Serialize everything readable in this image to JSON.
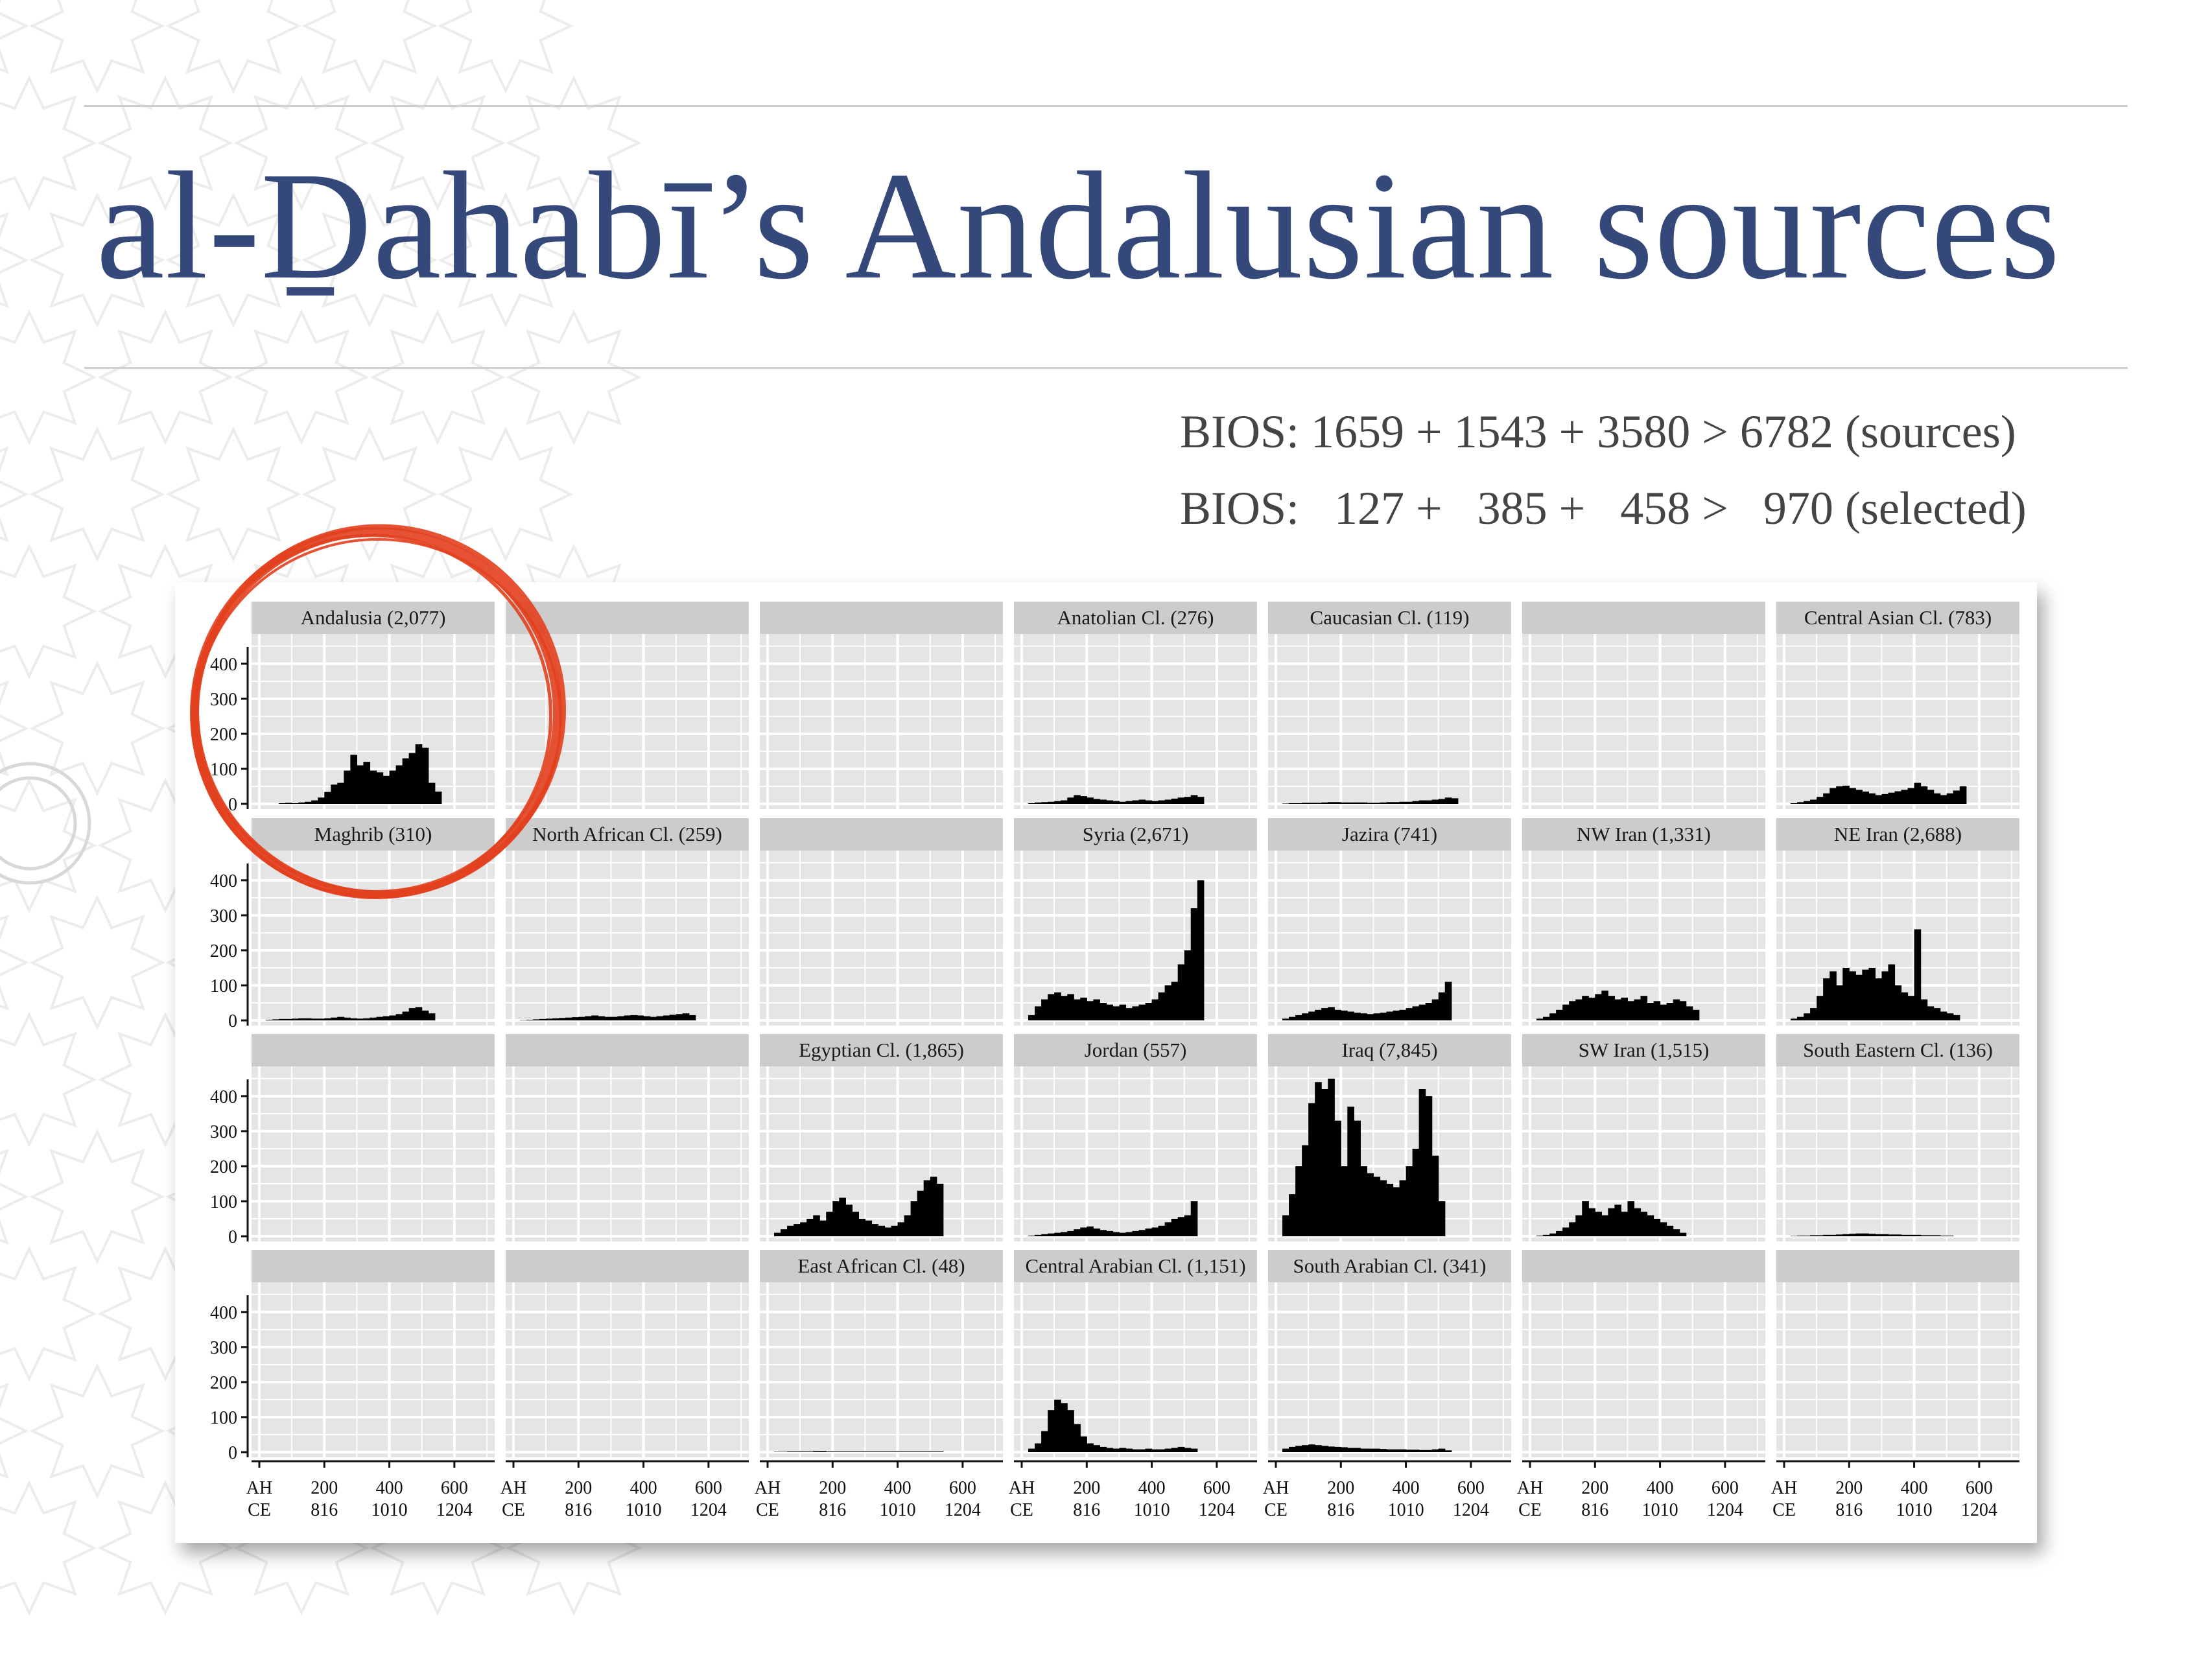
{
  "slide": {
    "title": "al-Ḏahabī’s Andalusian sources",
    "stats": [
      {
        "label": "BIOS:",
        "parts": [
          "1659",
          "1543",
          "3580",
          "6782"
        ],
        "suffix": "(sources)",
        "text": "BIOS: 1659 + 1543 + 3580 > 6782 (sources)"
      },
      {
        "label": "BIOS:",
        "parts": [
          "127",
          "385",
          "458",
          "970"
        ],
        "suffix": "(selected)",
        "text": "BIOS:   127 +   385 +   458 >   970 (selected)"
      }
    ]
  },
  "colors": {
    "title": "#34497a",
    "panel_bg": "#e5e5e5",
    "strip_bg": "#cccccc",
    "bars": "#000000",
    "highlight_circle": "#e2401e"
  },
  "chart_data": {
    "type": "bar",
    "layout": {
      "rows": 4,
      "cols": 7
    },
    "xlim": [
      0,
      700
    ],
    "ylim": [
      0,
      470
    ],
    "x_ticks": [
      {
        "ah": "AH",
        "ce": "CE"
      },
      {
        "ah": "200",
        "ce": "816"
      },
      {
        "ah": "400",
        "ce": "1010"
      },
      {
        "ah": "600",
        "ce": "1204"
      }
    ],
    "y_ticks": [
      "0",
      "100",
      "200",
      "300",
      "400"
    ],
    "bin_width": 20,
    "panels": [
      {
        "row": 0,
        "col": 0,
        "label": "Andalusia (2,077)",
        "values": [
          0,
          0,
          0,
          2,
          3,
          2,
          4,
          6,
          10,
          18,
          34,
          55,
          60,
          95,
          140,
          110,
          120,
          95,
          90,
          80,
          95,
          110,
          130,
          145,
          170,
          160,
          60,
          35,
          0,
          0,
          0,
          0,
          0,
          0,
          0
        ]
      },
      {
        "row": 0,
        "col": 1,
        "label": ""
      },
      {
        "row": 0,
        "col": 2,
        "label": ""
      },
      {
        "row": 0,
        "col": 3,
        "label": "Anatolian Cl. (276)",
        "values": [
          0,
          2,
          4,
          5,
          6,
          8,
          10,
          18,
          25,
          22,
          18,
          14,
          12,
          10,
          8,
          6,
          8,
          10,
          12,
          10,
          8,
          10,
          12,
          15,
          18,
          20,
          25,
          20,
          0,
          0,
          0,
          0,
          0,
          0,
          0
        ]
      },
      {
        "row": 0,
        "col": 4,
        "label": "Caucasian Cl. (119)",
        "values": [
          0,
          1,
          2,
          2,
          3,
          3,
          3,
          4,
          5,
          5,
          4,
          4,
          4,
          4,
          3,
          3,
          4,
          5,
          5,
          6,
          6,
          8,
          10,
          10,
          12,
          14,
          18,
          16,
          0,
          0,
          0,
          0,
          0,
          0,
          0
        ]
      },
      {
        "row": 0,
        "col": 5,
        "label": ""
      },
      {
        "row": 0,
        "col": 6,
        "label": "Central Asian Cl. (783)",
        "values": [
          0,
          2,
          5,
          8,
          12,
          20,
          30,
          45,
          50,
          52,
          45,
          40,
          35,
          30,
          25,
          28,
          32,
          36,
          40,
          45,
          60,
          50,
          40,
          30,
          25,
          30,
          38,
          50,
          0,
          0,
          0,
          0,
          0,
          0,
          0
        ]
      },
      {
        "row": 1,
        "col": 0,
        "label": "Maghrib (310)",
        "values": [
          0,
          2,
          3,
          4,
          4,
          5,
          6,
          6,
          5,
          5,
          6,
          8,
          10,
          8,
          6,
          5,
          6,
          8,
          10,
          12,
          14,
          18,
          25,
          35,
          38,
          28,
          20,
          0,
          0,
          0,
          0,
          0,
          0,
          0,
          0
        ]
      },
      {
        "row": 1,
        "col": 1,
        "label": "North African Cl. (259)",
        "values": [
          0,
          1,
          2,
          3,
          4,
          5,
          6,
          7,
          8,
          9,
          10,
          12,
          14,
          12,
          10,
          10,
          12,
          14,
          15,
          14,
          12,
          10,
          12,
          14,
          16,
          18,
          20,
          15,
          0,
          0,
          0,
          0,
          0,
          0,
          0
        ]
      },
      {
        "row": 1,
        "col": 2,
        "label": ""
      },
      {
        "row": 1,
        "col": 3,
        "label": "Syria (2,671)",
        "values": [
          0,
          15,
          40,
          60,
          75,
          80,
          70,
          75,
          60,
          65,
          55,
          60,
          50,
          45,
          40,
          45,
          35,
          40,
          45,
          50,
          60,
          80,
          100,
          110,
          160,
          200,
          320,
          400,
          0,
          0,
          0,
          0,
          0,
          0,
          0
        ]
      },
      {
        "row": 1,
        "col": 4,
        "label": "Jazira (741)",
        "values": [
          0,
          5,
          10,
          15,
          20,
          25,
          30,
          35,
          38,
          30,
          28,
          25,
          22,
          20,
          18,
          20,
          22,
          25,
          28,
          30,
          35,
          40,
          45,
          50,
          60,
          80,
          110,
          0,
          0,
          0,
          0,
          0,
          0,
          0,
          0
        ]
      },
      {
        "row": 1,
        "col": 5,
        "label": "NW Iran (1,331)",
        "values": [
          0,
          5,
          10,
          20,
          30,
          45,
          55,
          60,
          70,
          65,
          75,
          85,
          70,
          60,
          65,
          55,
          60,
          70,
          50,
          55,
          45,
          50,
          60,
          55,
          40,
          30,
          0,
          0,
          0,
          0,
          0,
          0,
          0,
          0,
          0
        ]
      },
      {
        "row": 1,
        "col": 6,
        "label": "NE Iran (2,688)",
        "values": [
          0,
          5,
          10,
          20,
          35,
          70,
          120,
          140,
          100,
          150,
          140,
          130,
          145,
          150,
          120,
          140,
          160,
          100,
          80,
          70,
          260,
          60,
          40,
          35,
          25,
          20,
          15,
          0,
          0,
          0,
          0,
          0,
          0,
          0,
          0
        ]
      },
      {
        "row": 2,
        "col": 0,
        "label": ""
      },
      {
        "row": 2,
        "col": 1,
        "label": ""
      },
      {
        "row": 2,
        "col": 2,
        "label": "Egyptian Cl. (1,865)",
        "values": [
          0,
          10,
          20,
          30,
          35,
          40,
          50,
          60,
          45,
          70,
          100,
          110,
          90,
          70,
          50,
          45,
          35,
          30,
          25,
          30,
          40,
          60,
          100,
          130,
          160,
          170,
          150,
          0,
          0,
          0,
          0,
          0,
          0,
          0,
          0
        ]
      },
      {
        "row": 2,
        "col": 3,
        "label": "Jordan (557)",
        "values": [
          0,
          2,
          4,
          6,
          8,
          10,
          12,
          15,
          20,
          25,
          28,
          22,
          18,
          15,
          12,
          10,
          12,
          15,
          18,
          22,
          25,
          30,
          40,
          50,
          55,
          60,
          100,
          0,
          0,
          0,
          0,
          0,
          0,
          0,
          0
        ]
      },
      {
        "row": 2,
        "col": 4,
        "label": "Iraq (7,845)",
        "values": [
          0,
          60,
          120,
          200,
          260,
          380,
          440,
          420,
          450,
          330,
          200,
          370,
          330,
          200,
          180,
          170,
          160,
          150,
          140,
          160,
          200,
          250,
          420,
          400,
          230,
          100,
          0,
          0,
          0,
          0,
          0,
          0,
          0,
          0,
          0
        ]
      },
      {
        "row": 2,
        "col": 5,
        "label": "SW Iran (1,515)",
        "values": [
          0,
          2,
          4,
          8,
          15,
          25,
          40,
          60,
          100,
          80,
          70,
          60,
          80,
          90,
          70,
          100,
          80,
          70,
          60,
          50,
          40,
          30,
          20,
          10,
          0,
          0,
          0,
          0,
          0,
          0,
          0,
          0,
          0,
          0,
          0
        ]
      },
      {
        "row": 2,
        "col": 6,
        "label": "South Eastern Cl. (136)",
        "values": [
          0,
          1,
          2,
          2,
          3,
          3,
          4,
          4,
          5,
          6,
          7,
          8,
          8,
          7,
          6,
          6,
          5,
          5,
          4,
          4,
          4,
          3,
          3,
          3,
          2,
          2,
          0,
          0,
          0,
          0,
          0,
          0,
          0,
          0,
          0
        ]
      },
      {
        "row": 3,
        "col": 0,
        "label": ""
      },
      {
        "row": 3,
        "col": 1,
        "label": ""
      },
      {
        "row": 3,
        "col": 2,
        "label": "East African Cl. (48)",
        "values": [
          0,
          1,
          1,
          2,
          2,
          2,
          2,
          3,
          3,
          2,
          2,
          2,
          2,
          2,
          2,
          2,
          2,
          2,
          2,
          2,
          2,
          2,
          2,
          2,
          2,
          2,
          2,
          0,
          0,
          0,
          0,
          0,
          0,
          0,
          0
        ]
      },
      {
        "row": 3,
        "col": 3,
        "label": "Central Arabian Cl. (1,151)",
        "values": [
          0,
          10,
          25,
          60,
          120,
          150,
          140,
          120,
          80,
          45,
          25,
          20,
          15,
          12,
          10,
          12,
          10,
          8,
          8,
          10,
          8,
          8,
          10,
          12,
          15,
          12,
          10,
          0,
          0,
          0,
          0,
          0,
          0,
          0,
          0
        ]
      },
      {
        "row": 3,
        "col": 4,
        "label": "South Arabian Cl. (341)",
        "values": [
          0,
          10,
          15,
          18,
          20,
          22,
          20,
          18,
          16,
          15,
          14,
          12,
          12,
          10,
          10,
          10,
          9,
          8,
          8,
          8,
          7,
          7,
          6,
          6,
          8,
          10,
          5,
          0,
          0,
          0,
          0,
          0,
          0,
          0,
          0
        ]
      },
      {
        "row": 3,
        "col": 5,
        "label": ""
      },
      {
        "row": 3,
        "col": 6,
        "label": ""
      }
    ]
  }
}
